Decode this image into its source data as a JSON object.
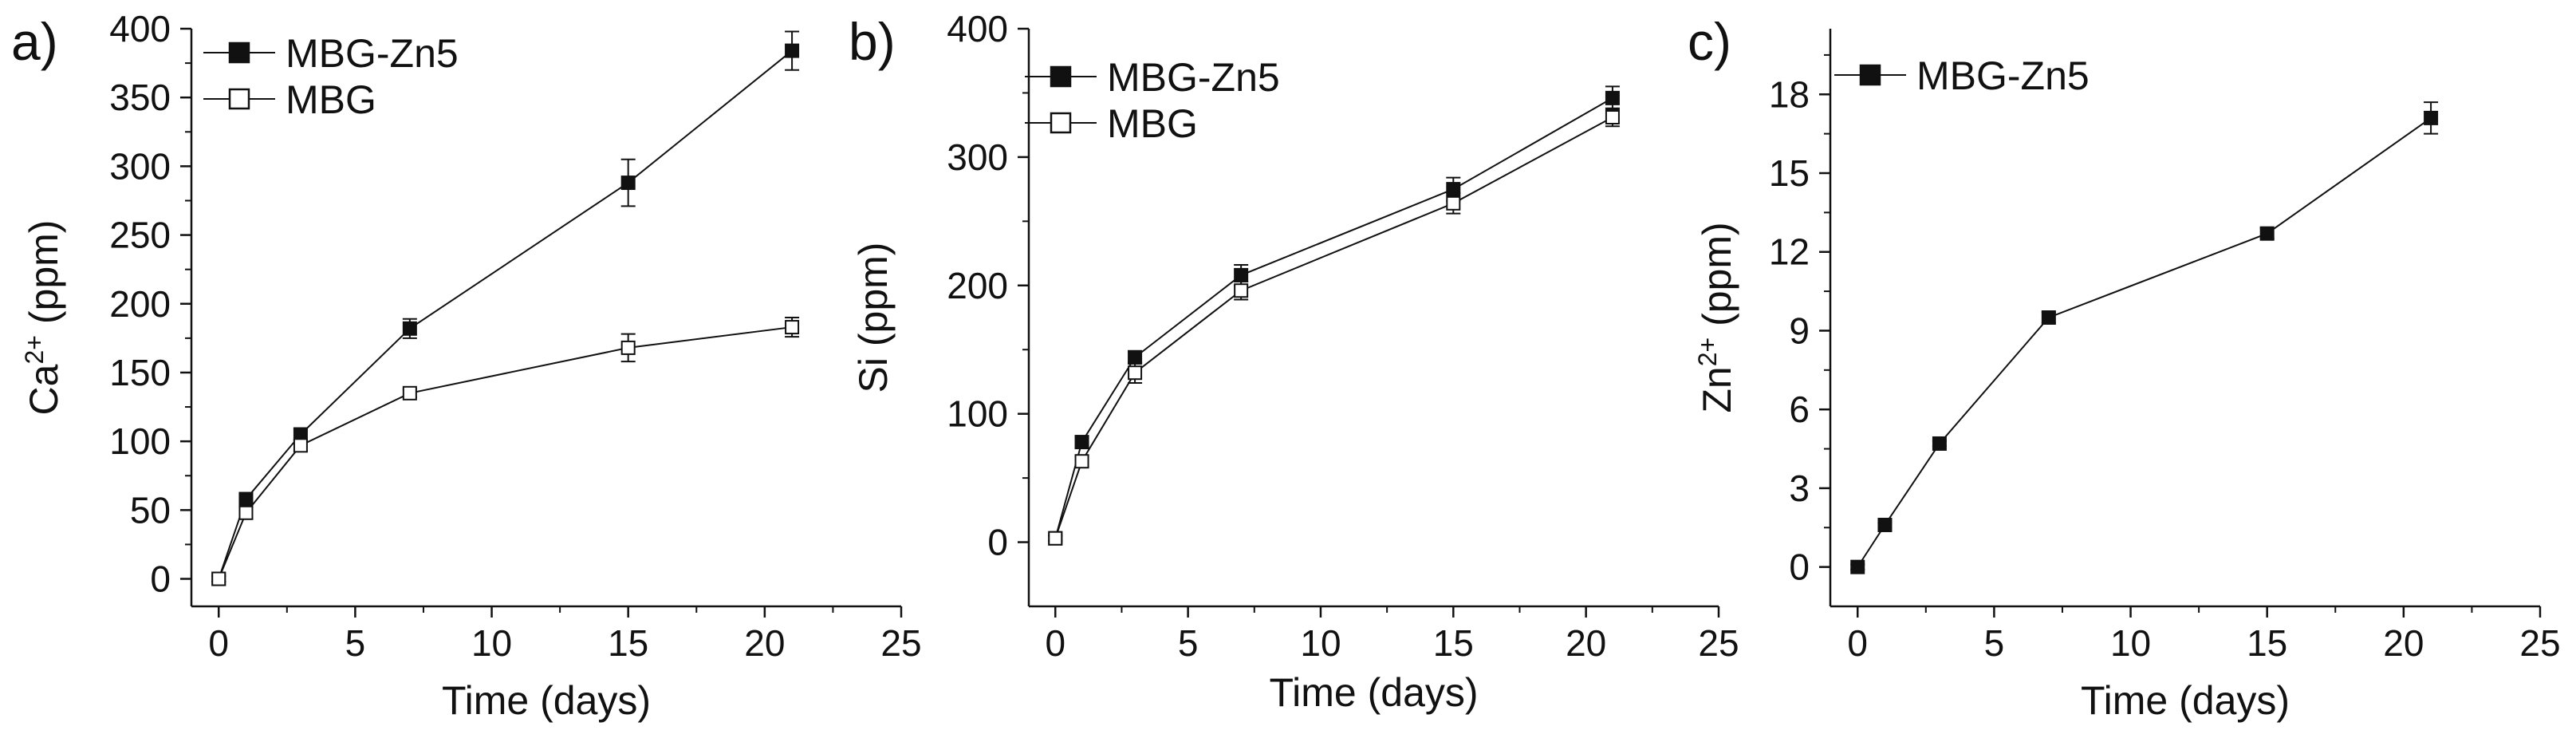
{
  "colors": {
    "ink": "#111111",
    "background": "#ffffff"
  },
  "chart_data": [
    {
      "id": "a",
      "type": "line",
      "panel_label": "a)",
      "xlabel": "Time (days)",
      "ylabel_base": "Ca",
      "ylabel_sup": "2+",
      "ylabel_tail": " (ppm)",
      "xlim": [
        -1,
        25
      ],
      "ylim": [
        -20,
        400
      ],
      "xticks": [
        0,
        5,
        10,
        15,
        20,
        25
      ],
      "yticks": [
        0,
        50,
        100,
        150,
        200,
        250,
        300,
        350,
        400
      ],
      "legend_position": "top-left",
      "series": [
        {
          "name": "MBG-Zn5",
          "marker": "filled-square",
          "x": [
            0,
            1,
            3,
            7,
            15,
            21
          ],
          "y": [
            0,
            58,
            105,
            182,
            288,
            384
          ],
          "err": [
            2,
            4,
            4,
            7,
            17,
            14
          ]
        },
        {
          "name": "MBG",
          "marker": "open-square",
          "x": [
            0,
            1,
            3,
            7,
            15,
            21
          ],
          "y": [
            0,
            48,
            97,
            135,
            168,
            183
          ],
          "err": [
            2,
            4,
            4,
            3,
            10,
            7
          ]
        }
      ]
    },
    {
      "id": "b",
      "type": "line",
      "panel_label": "b)",
      "xlabel": "Time (days)",
      "ylabel_base": "Si",
      "ylabel_sup": "",
      "ylabel_tail": " (ppm)",
      "xlim": [
        -1,
        25
      ],
      "ylim": [
        -50,
        400
      ],
      "xticks": [
        0,
        5,
        10,
        15,
        20,
        25
      ],
      "yticks": [
        0,
        100,
        200,
        300,
        400
      ],
      "legend_position": "top-left",
      "series": [
        {
          "name": "MBG-Zn5",
          "marker": "filled-square",
          "x": [
            0,
            1,
            3,
            7,
            15,
            21
          ],
          "y": [
            3,
            78,
            144,
            208,
            275,
            346
          ],
          "err": [
            2,
            4,
            5,
            8,
            9,
            9
          ]
        },
        {
          "name": "MBG",
          "marker": "open-square",
          "x": [
            0,
            1,
            3,
            7,
            15,
            21
          ],
          "y": [
            3,
            63,
            132,
            196,
            264,
            331
          ],
          "err": [
            2,
            4,
            8,
            7,
            8,
            7
          ]
        }
      ]
    },
    {
      "id": "c",
      "type": "line",
      "panel_label": "c)",
      "xlabel": "Time (days)",
      "ylabel_base": "Zn",
      "ylabel_sup": "2+",
      "ylabel_tail": " (ppm)",
      "xlim": [
        -1,
        25
      ],
      "ylim": [
        -1.5,
        20.5
      ],
      "xticks": [
        0,
        5,
        10,
        15,
        20,
        25
      ],
      "yticks": [
        0,
        3,
        6,
        9,
        12,
        15,
        18
      ],
      "legend_position": "top-left",
      "series": [
        {
          "name": "MBG-Zn5",
          "marker": "filled-square",
          "x": [
            0,
            1,
            3,
            7,
            15,
            21
          ],
          "y": [
            0,
            1.6,
            4.7,
            9.5,
            12.7,
            17.1
          ],
          "err": [
            0.1,
            0.1,
            0.1,
            0.2,
            0.2,
            0.6
          ]
        }
      ]
    }
  ]
}
